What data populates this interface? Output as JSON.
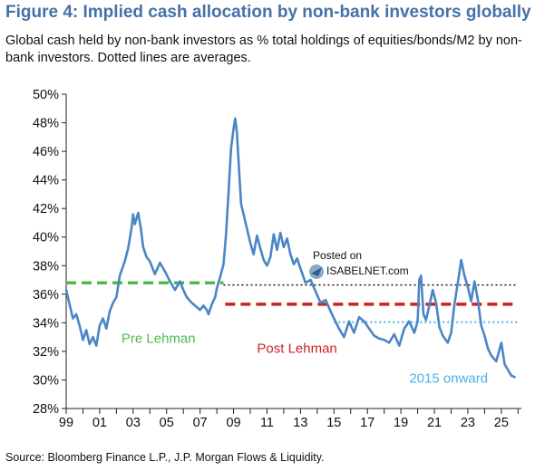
{
  "figure": {
    "title": "Figure 4: Implied cash allocation by non-bank investors globally",
    "subtitle": "Global cash held by non-bank investors as % total holdings of equities/bonds/M2 by non-bank investors. Dotted lines are averages.",
    "source": "Source: Bloomberg Finance L.P., J.P. Morgan Flows & Liquidity."
  },
  "watermark": {
    "line1": "Posted on",
    "line2": "ISABELNET.com"
  },
  "chart_data": {
    "type": "line",
    "title": "",
    "xlabel": "",
    "ylabel": "",
    "xlim": [
      1999,
      2026.2
    ],
    "ylim": [
      28,
      50
    ],
    "grid": false,
    "x_ticks": [
      {
        "label": "99",
        "value": 1999
      },
      {
        "label": "01",
        "value": 2001
      },
      {
        "label": "03",
        "value": 2003
      },
      {
        "label": "05",
        "value": 2005
      },
      {
        "label": "07",
        "value": 2007
      },
      {
        "label": "09",
        "value": 2009
      },
      {
        "label": "11",
        "value": 2011
      },
      {
        "label": "13",
        "value": 2013
      },
      {
        "label": "15",
        "value": 2015
      },
      {
        "label": "17",
        "value": 2017
      },
      {
        "label": "19",
        "value": 2019
      },
      {
        "label": "21",
        "value": 2021
      },
      {
        "label": "23",
        "value": 2023
      },
      {
        "label": "25",
        "value": 2025
      }
    ],
    "y_ticks": [
      {
        "label": "28%",
        "value": 28
      },
      {
        "label": "30%",
        "value": 30
      },
      {
        "label": "32%",
        "value": 32
      },
      {
        "label": "34%",
        "value": 34
      },
      {
        "label": "36%",
        "value": 36
      },
      {
        "label": "38%",
        "value": 38
      },
      {
        "label": "40%",
        "value": 40
      },
      {
        "label": "42%",
        "value": 42
      },
      {
        "label": "44%",
        "value": 44
      },
      {
        "label": "46%",
        "value": 46
      },
      {
        "label": "48%",
        "value": 48
      },
      {
        "label": "50%",
        "value": 50
      }
    ],
    "series": [
      {
        "color": "#4a86c6",
        "points": [
          [
            1999.0,
            36.3
          ],
          [
            1999.2,
            35.3
          ],
          [
            1999.4,
            34.3
          ],
          [
            1999.6,
            34.6
          ],
          [
            1999.8,
            33.8
          ],
          [
            2000.0,
            32.8
          ],
          [
            2000.2,
            33.5
          ],
          [
            2000.4,
            32.5
          ],
          [
            2000.6,
            33.0
          ],
          [
            2000.8,
            32.4
          ],
          [
            2001.0,
            33.8
          ],
          [
            2001.2,
            34.3
          ],
          [
            2001.4,
            33.6
          ],
          [
            2001.6,
            34.8
          ],
          [
            2001.8,
            35.4
          ],
          [
            2002.0,
            35.8
          ],
          [
            2002.2,
            37.3
          ],
          [
            2002.5,
            38.3
          ],
          [
            2002.7,
            39.2
          ],
          [
            2002.9,
            40.6
          ],
          [
            2003.0,
            41.6
          ],
          [
            2003.1,
            40.9
          ],
          [
            2003.3,
            41.7
          ],
          [
            2003.45,
            40.7
          ],
          [
            2003.6,
            39.3
          ],
          [
            2003.8,
            38.6
          ],
          [
            2004.0,
            38.3
          ],
          [
            2004.3,
            37.4
          ],
          [
            2004.6,
            38.2
          ],
          [
            2004.9,
            37.6
          ],
          [
            2005.2,
            36.9
          ],
          [
            2005.5,
            36.3
          ],
          [
            2005.8,
            36.9
          ],
          [
            2006.0,
            36.3
          ],
          [
            2006.2,
            35.8
          ],
          [
            2006.5,
            35.4
          ],
          [
            2006.8,
            35.1
          ],
          [
            2007.0,
            34.9
          ],
          [
            2007.2,
            35.2
          ],
          [
            2007.4,
            34.9
          ],
          [
            2007.5,
            34.6
          ],
          [
            2007.7,
            35.3
          ],
          [
            2007.9,
            35.8
          ],
          [
            2008.0,
            36.4
          ],
          [
            2008.2,
            37.2
          ],
          [
            2008.4,
            38.1
          ],
          [
            2008.55,
            40.2
          ],
          [
            2008.7,
            43.1
          ],
          [
            2008.85,
            46.2
          ],
          [
            2009.0,
            47.6
          ],
          [
            2009.1,
            48.3
          ],
          [
            2009.2,
            47.3
          ],
          [
            2009.3,
            45.3
          ],
          [
            2009.45,
            42.3
          ],
          [
            2009.6,
            41.6
          ],
          [
            2009.8,
            40.6
          ],
          [
            2010.0,
            39.6
          ],
          [
            2010.2,
            38.8
          ],
          [
            2010.4,
            40.1
          ],
          [
            2010.6,
            39.2
          ],
          [
            2010.8,
            38.4
          ],
          [
            2011.0,
            38.0
          ],
          [
            2011.2,
            38.6
          ],
          [
            2011.4,
            40.2
          ],
          [
            2011.6,
            39.1
          ],
          [
            2011.8,
            40.3
          ],
          [
            2012.0,
            39.3
          ],
          [
            2012.2,
            39.9
          ],
          [
            2012.4,
            38.8
          ],
          [
            2012.6,
            38.1
          ],
          [
            2012.8,
            38.5
          ],
          [
            2013.0,
            37.8
          ],
          [
            2013.3,
            36.8
          ],
          [
            2013.6,
            37.0
          ],
          [
            2013.9,
            36.2
          ],
          [
            2014.2,
            35.4
          ],
          [
            2014.5,
            35.6
          ],
          [
            2014.8,
            34.8
          ],
          [
            2015.0,
            34.3
          ],
          [
            2015.3,
            33.6
          ],
          [
            2015.6,
            33.0
          ],
          [
            2015.9,
            34.1
          ],
          [
            2016.2,
            33.3
          ],
          [
            2016.5,
            34.4
          ],
          [
            2016.8,
            34.1
          ],
          [
            2017.1,
            33.6
          ],
          [
            2017.4,
            33.1
          ],
          [
            2017.7,
            32.9
          ],
          [
            2018.0,
            32.8
          ],
          [
            2018.3,
            32.6
          ],
          [
            2018.6,
            33.2
          ],
          [
            2018.9,
            32.4
          ],
          [
            2019.2,
            33.6
          ],
          [
            2019.5,
            34.1
          ],
          [
            2019.8,
            33.3
          ],
          [
            2020.0,
            34.1
          ],
          [
            2020.1,
            37.0
          ],
          [
            2020.2,
            37.3
          ],
          [
            2020.35,
            34.6
          ],
          [
            2020.5,
            34.2
          ],
          [
            2020.7,
            35.2
          ],
          [
            2020.9,
            36.3
          ],
          [
            2021.1,
            35.4
          ],
          [
            2021.3,
            33.7
          ],
          [
            2021.5,
            33.1
          ],
          [
            2021.8,
            32.6
          ],
          [
            2022.0,
            33.3
          ],
          [
            2022.2,
            35.3
          ],
          [
            2022.4,
            36.8
          ],
          [
            2022.6,
            38.4
          ],
          [
            2022.8,
            37.3
          ],
          [
            2023.0,
            36.5
          ],
          [
            2023.2,
            35.5
          ],
          [
            2023.4,
            36.9
          ],
          [
            2023.6,
            35.6
          ],
          [
            2023.8,
            33.8
          ],
          [
            2024.0,
            33.1
          ],
          [
            2024.2,
            32.2
          ],
          [
            2024.4,
            31.7
          ],
          [
            2024.7,
            31.3
          ],
          [
            2025.0,
            32.6
          ],
          [
            2025.2,
            31.1
          ],
          [
            2025.4,
            30.7
          ],
          [
            2025.6,
            30.3
          ],
          [
            2025.8,
            30.2
          ]
        ]
      }
    ],
    "reference_lines": [
      {
        "label": "Pre Lehman",
        "value": 36.8,
        "x_start": 1999,
        "x_end": 2008.4,
        "color": "#4fb84f",
        "style": "dashed"
      },
      {
        "label": "",
        "value": 36.65,
        "x_start": 2008.4,
        "x_end": 2026.0,
        "color": "#111111",
        "style": "dotted"
      },
      {
        "label": "Post Lehman",
        "value": 35.3,
        "x_start": 2008.5,
        "x_end": 2026.0,
        "color": "#cc2222",
        "style": "dashed"
      },
      {
        "label": "2015 onward",
        "value": 34.05,
        "x_start": 2015.0,
        "x_end": 2026.0,
        "color": "#4fb0e6",
        "style": "dotted"
      }
    ]
  }
}
